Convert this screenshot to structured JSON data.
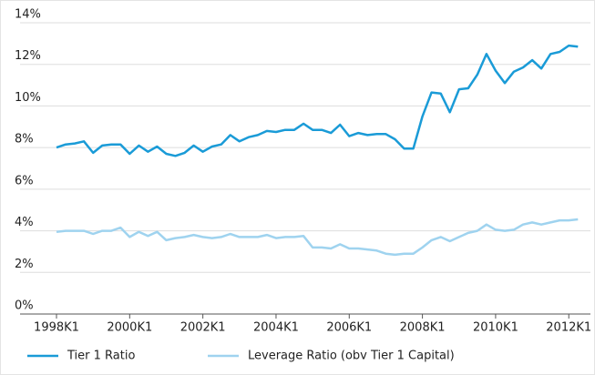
{
  "chart_data": {
    "type": "line",
    "categories": [
      "1998K1",
      null,
      null,
      null,
      null,
      null,
      null,
      null,
      "2000K1",
      null,
      null,
      null,
      null,
      null,
      null,
      null,
      "2002K1",
      null,
      null,
      null,
      null,
      null,
      null,
      null,
      "2004K1",
      null,
      null,
      null,
      null,
      null,
      null,
      null,
      "2006K1",
      null,
      null,
      null,
      null,
      null,
      null,
      null,
      "2008K1",
      null,
      null,
      null,
      null,
      null,
      null,
      null,
      "2010K1",
      null,
      null,
      null,
      null,
      null,
      null,
      null,
      "2012K1",
      null
    ],
    "series": [
      {
        "name": "Tier 1 Ratio",
        "color": "#1a9bd7",
        "values": [
          8.0,
          8.15,
          8.2,
          8.3,
          7.75,
          8.1,
          8.15,
          8.15,
          7.7,
          8.1,
          7.8,
          8.05,
          7.7,
          7.6,
          7.75,
          8.1,
          7.8,
          8.05,
          8.15,
          8.6,
          8.3,
          8.5,
          8.6,
          8.8,
          8.75,
          8.85,
          8.85,
          9.15,
          8.85,
          8.85,
          8.7,
          9.1,
          8.55,
          8.7,
          8.6,
          8.65,
          8.65,
          8.4,
          7.95,
          7.95,
          9.5,
          10.65,
          10.6,
          9.7,
          10.8,
          10.85,
          11.5,
          12.5,
          11.7,
          11.1,
          11.65,
          11.85,
          12.2,
          11.8,
          12.5,
          12.6,
          12.9,
          12.85
        ]
      },
      {
        "name": "Leverage Ratio (obv Tier 1 Capital)",
        "color": "#9fd3ef",
        "values": [
          3.95,
          4.0,
          4.0,
          4.0,
          3.85,
          4.0,
          4.0,
          4.15,
          3.7,
          3.95,
          3.75,
          3.95,
          3.55,
          3.65,
          3.7,
          3.8,
          3.7,
          3.65,
          3.7,
          3.85,
          3.7,
          3.7,
          3.7,
          3.8,
          3.65,
          3.7,
          3.7,
          3.75,
          3.2,
          3.2,
          3.15,
          3.35,
          3.15,
          3.15,
          3.1,
          3.05,
          2.9,
          2.85,
          2.9,
          2.9,
          3.2,
          3.55,
          3.7,
          3.5,
          3.7,
          3.9,
          4.0,
          4.3,
          4.05,
          4.0,
          4.05,
          4.3,
          4.4,
          4.3,
          4.4,
          4.5,
          4.5,
          4.55
        ]
      }
    ],
    "ylim": [
      0,
      14
    ],
    "yticks": [
      {
        "value": 0,
        "label": "0%"
      },
      {
        "value": 2,
        "label": "2%"
      },
      {
        "value": 4,
        "label": "4%"
      },
      {
        "value": 6,
        "label": "6%"
      },
      {
        "value": 8,
        "label": "8%"
      },
      {
        "value": 10,
        "label": "10%"
      },
      {
        "value": 12,
        "label": "12%"
      },
      {
        "value": 14,
        "label": "14%"
      }
    ],
    "grid": true,
    "legend": "bottom"
  }
}
